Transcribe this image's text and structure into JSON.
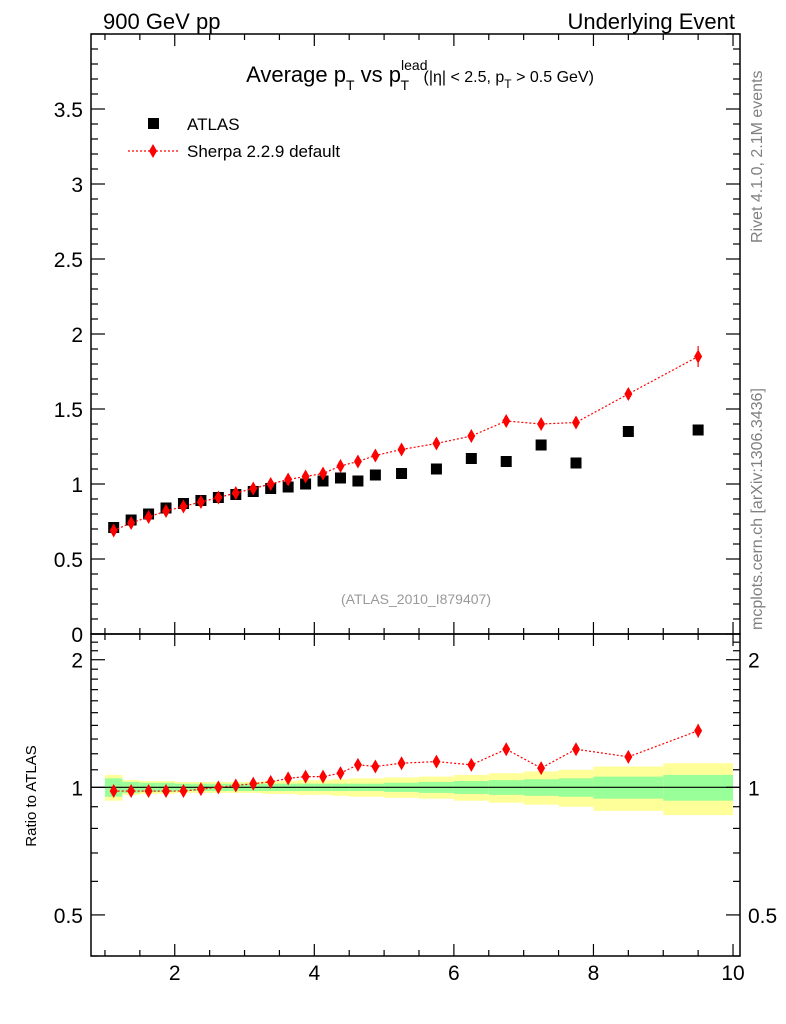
{
  "header": {
    "left": "900 GeV pp",
    "right": "Underlying Event"
  },
  "side_labels": {
    "top": "Rivet 4.1.0,  2.1M events",
    "bottom": "mcplots.cern.ch [arXiv:1306.3436]"
  },
  "colors": {
    "data": "#000000",
    "mc": "#ff0000",
    "band_inner": "#99ff99",
    "band_outer": "#ffff99",
    "watermark": "#999999"
  },
  "chart_data": [
    {
      "type": "scatter",
      "title_parts": {
        "main": "Average p",
        "sub1": "T",
        "mid": " vs p",
        "sup": "lead",
        "sub2": "T",
        "cut1": " (|η| < 2.5, p",
        "cut_sub": "T",
        "cut2": " > 0.5 GeV)"
      },
      "watermark": "(ATLAS_2010_I879407)",
      "xlim": [
        0.8,
        10.1
      ],
      "ylim": [
        0,
        4.0
      ],
      "yticks": [
        0,
        0.5,
        1,
        1.5,
        2,
        2.5,
        3,
        3.5
      ],
      "ytick_labels": [
        "0",
        "0.5",
        "1",
        "1.5",
        "2",
        "2.5",
        "3",
        "3.5"
      ],
      "legend": {
        "position": "top-left",
        "data_label": "ATLAS",
        "mc_label": "Sherpa 2.2.9 default"
      },
      "series": [
        {
          "name": "ATLAS",
          "marker": "square",
          "x": [
            1.125,
            1.375,
            1.625,
            1.875,
            2.125,
            2.375,
            2.625,
            2.875,
            3.125,
            3.375,
            3.625,
            3.875,
            4.125,
            4.375,
            4.625,
            4.875,
            5.25,
            5.75,
            6.25,
            6.75,
            7.25,
            7.75,
            8.5,
            9.5
          ],
          "values": [
            0.71,
            0.76,
            0.8,
            0.84,
            0.87,
            0.89,
            0.91,
            0.93,
            0.95,
            0.97,
            0.98,
            1.0,
            1.02,
            1.04,
            1.02,
            1.06,
            1.07,
            1.1,
            1.17,
            1.15,
            1.26,
            1.14,
            1.35,
            1.36
          ]
        },
        {
          "name": "Sherpa 2.2.9 default",
          "marker": "diamond",
          "x": [
            1.125,
            1.375,
            1.625,
            1.875,
            2.125,
            2.375,
            2.625,
            2.875,
            3.125,
            3.375,
            3.625,
            3.875,
            4.125,
            4.375,
            4.625,
            4.875,
            5.25,
            5.75,
            6.25,
            6.75,
            7.25,
            7.75,
            8.5,
            9.5
          ],
          "values": [
            0.69,
            0.74,
            0.78,
            0.82,
            0.85,
            0.88,
            0.91,
            0.94,
            0.97,
            1.0,
            1.03,
            1.05,
            1.07,
            1.12,
            1.15,
            1.19,
            1.23,
            1.27,
            1.32,
            1.42,
            1.4,
            1.41,
            1.6,
            1.85
          ],
          "errors": [
            0.01,
            0.01,
            0.01,
            0.01,
            0.01,
            0.01,
            0.01,
            0.01,
            0.01,
            0.01,
            0.01,
            0.01,
            0.01,
            0.015,
            0.015,
            0.015,
            0.02,
            0.02,
            0.025,
            0.03,
            0.03,
            0.035,
            0.04,
            0.07
          ]
        }
      ]
    },
    {
      "type": "scatter",
      "ylabel": "Ratio to ATLAS",
      "xlim": [
        0.8,
        10.1
      ],
      "ylim": [
        0.4,
        2.3
      ],
      "xticks": [
        2,
        4,
        6,
        8,
        10
      ],
      "xtick_labels": [
        "2",
        "4",
        "6",
        "8",
        "10"
      ],
      "yticks": [
        0.5,
        1,
        2
      ],
      "ytick_labels": [
        "0.5",
        "1",
        "2"
      ],
      "bands": {
        "edges": [
          1.0,
          1.25,
          1.5,
          1.75,
          2.0,
          2.25,
          2.5,
          2.75,
          3.0,
          3.25,
          3.5,
          3.75,
          4.0,
          4.25,
          4.5,
          4.75,
          5.0,
          5.5,
          6.0,
          6.5,
          7.0,
          7.5,
          8.0,
          9.0,
          10.0
        ],
        "inner": [
          0.05,
          0.03,
          0.025,
          0.025,
          0.02,
          0.02,
          0.02,
          0.02,
          0.02,
          0.02,
          0.02,
          0.02,
          0.02,
          0.02,
          0.02,
          0.02,
          0.025,
          0.03,
          0.035,
          0.04,
          0.045,
          0.05,
          0.06,
          0.07
        ],
        "outer": [
          0.07,
          0.04,
          0.035,
          0.035,
          0.03,
          0.03,
          0.03,
          0.03,
          0.03,
          0.035,
          0.035,
          0.04,
          0.04,
          0.045,
          0.05,
          0.05,
          0.055,
          0.06,
          0.07,
          0.08,
          0.09,
          0.1,
          0.12,
          0.14
        ]
      },
      "series": [
        {
          "name": "Sherpa 2.2.9 default / ATLAS",
          "marker": "diamond",
          "x": [
            1.125,
            1.375,
            1.625,
            1.875,
            2.125,
            2.375,
            2.625,
            2.875,
            3.125,
            3.375,
            3.625,
            3.875,
            4.125,
            4.375,
            4.625,
            4.875,
            5.25,
            5.75,
            6.25,
            6.75,
            7.25,
            7.75,
            8.5,
            9.5
          ],
          "values": [
            0.98,
            0.98,
            0.98,
            0.98,
            0.98,
            0.99,
            1.0,
            1.01,
            1.02,
            1.03,
            1.05,
            1.06,
            1.06,
            1.08,
            1.13,
            1.12,
            1.14,
            1.15,
            1.13,
            1.23,
            1.11,
            1.23,
            1.18,
            1.36
          ],
          "errors": [
            0.01,
            0.01,
            0.01,
            0.01,
            0.01,
            0.01,
            0.01,
            0.01,
            0.01,
            0.01,
            0.01,
            0.01,
            0.01,
            0.015,
            0.015,
            0.015,
            0.02,
            0.02,
            0.02,
            0.025,
            0.025,
            0.03,
            0.03,
            0.05
          ]
        }
      ]
    }
  ]
}
